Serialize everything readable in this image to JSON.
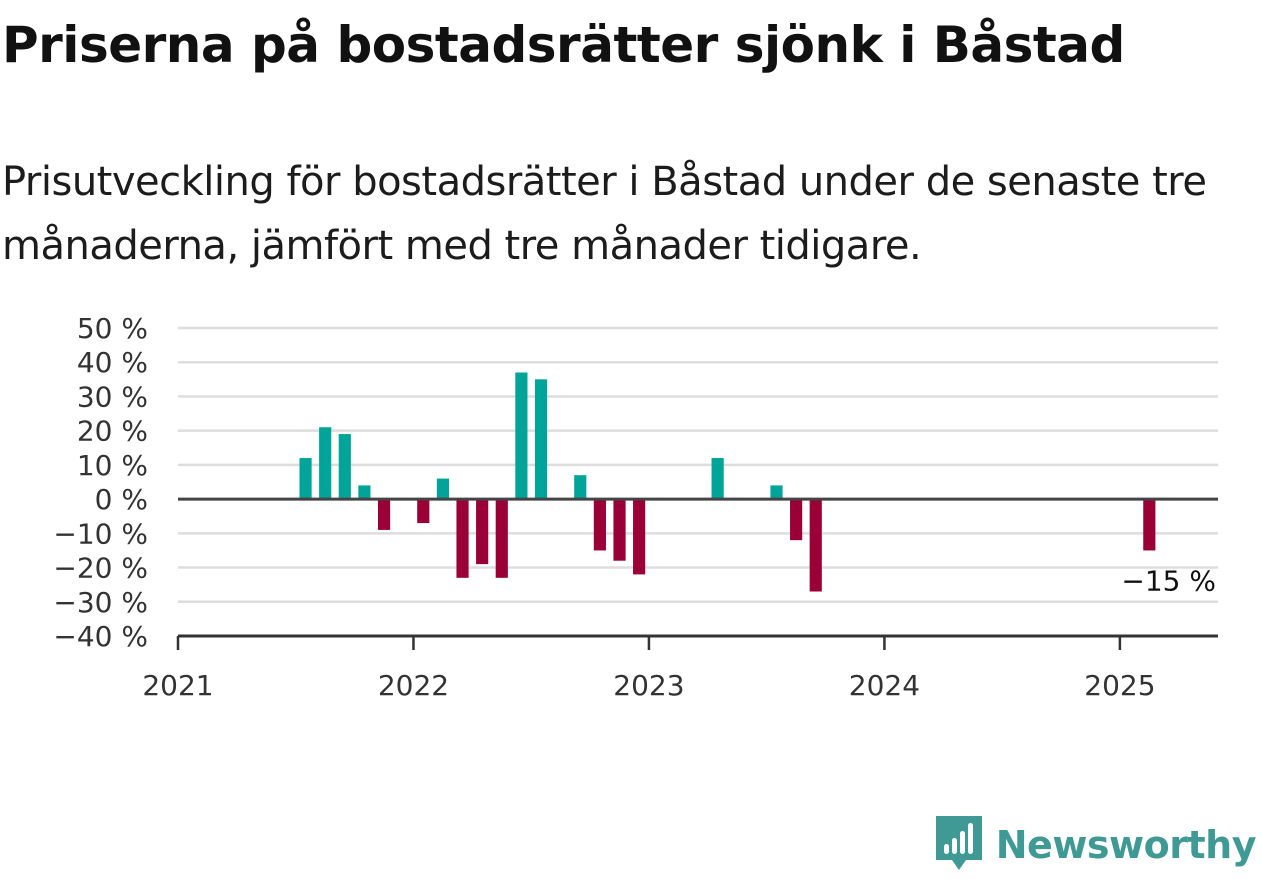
{
  "title": "Priserna på bostadsrätter sjönk i Båstad",
  "subtitle": "Prisutveckling för bostadsrätter i Båstad under de senaste tre månaderna, jämfört med tre månader tidigare.",
  "brand": {
    "name": "Newsworthy",
    "icon": "newsworthy-logo-icon",
    "color": "#3f9a96"
  },
  "colors": {
    "positive": "#00a499",
    "negative": "#9a0036",
    "grid": "#dddddd",
    "zero_line": "#444444",
    "axis": "#333333"
  },
  "chart_data": {
    "type": "bar",
    "title": "",
    "xlabel": "",
    "ylabel": "",
    "ylim": [
      -40,
      50
    ],
    "xlim": [
      "2021-01",
      "2025-06"
    ],
    "grid": true,
    "yticks": [
      {
        "value": 50,
        "label": "50 %"
      },
      {
        "value": 40,
        "label": "40 %"
      },
      {
        "value": 30,
        "label": "30 %"
      },
      {
        "value": 20,
        "label": "20 %"
      },
      {
        "value": 10,
        "label": "10 %"
      },
      {
        "value": 0,
        "label": "0 %"
      },
      {
        "value": -10,
        "label": "−10 %"
      },
      {
        "value": -20,
        "label": "−20 %"
      },
      {
        "value": -30,
        "label": "−30 %"
      },
      {
        "value": -40,
        "label": "−40 %"
      }
    ],
    "xticks": [
      {
        "value": "2021-01",
        "label": "2021"
      },
      {
        "value": "2022-01",
        "label": "2022"
      },
      {
        "value": "2023-01",
        "label": "2023"
      },
      {
        "value": "2024-01",
        "label": "2024"
      },
      {
        "value": "2025-01",
        "label": "2025"
      }
    ],
    "x": [
      "2021-07",
      "2021-08",
      "2021-09",
      "2021-10",
      "2021-11",
      "2022-01",
      "2022-02",
      "2022-03",
      "2022-04",
      "2022-05",
      "2022-06",
      "2022-07",
      "2022-09",
      "2022-10",
      "2022-11",
      "2022-12",
      "2023-04",
      "2023-07",
      "2023-08",
      "2023-09",
      "2025-02"
    ],
    "values": [
      12,
      21,
      19,
      4,
      -9,
      -7,
      6,
      -23,
      -19,
      -23,
      37,
      35,
      7,
      -15,
      -18,
      -22,
      12,
      4,
      -12,
      -27,
      -15
    ],
    "annotations": [
      {
        "x": "2025-02",
        "value": -15,
        "label": "−15 %"
      }
    ]
  }
}
